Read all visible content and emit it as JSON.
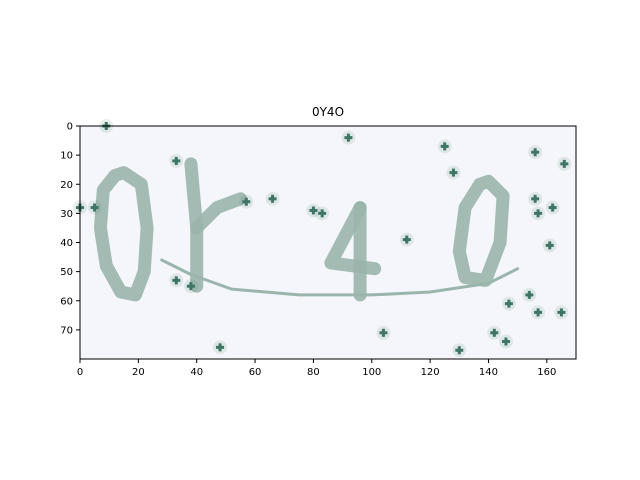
{
  "chart_data": {
    "type": "image",
    "title": "0Y4O",
    "captcha_text": "0Y4O",
    "xlim": [
      0,
      170
    ],
    "ylim": [
      80,
      0
    ],
    "x_ticks": [
      0,
      20,
      40,
      60,
      80,
      100,
      120,
      140,
      160
    ],
    "y_ticks": [
      0,
      10,
      20,
      30,
      40,
      50,
      60,
      70
    ],
    "grid": false,
    "colors": {
      "background": "#f4f6fb",
      "glyph": "#9ab5ab",
      "noise_dot": "#3f7565"
    },
    "glyph_strokes": [
      [
        [
          12,
          17
        ],
        [
          8,
          22
        ],
        [
          7,
          35
        ],
        [
          9,
          48
        ],
        [
          14,
          57
        ],
        [
          19,
          58
        ],
        [
          22,
          50
        ],
        [
          23,
          35
        ],
        [
          21,
          20
        ],
        [
          15,
          16
        ],
        [
          12,
          17
        ]
      ],
      [
        [
          38,
          13
        ],
        [
          40,
          35
        ],
        [
          40,
          55
        ]
      ],
      [
        [
          40,
          35
        ],
        [
          47,
          28
        ],
        [
          55,
          25
        ]
      ],
      [
        [
          96,
          28
        ],
        [
          86,
          47
        ],
        [
          101,
          49
        ]
      ],
      [
        [
          96,
          28
        ],
        [
          96,
          58
        ]
      ],
      [
        [
          137,
          20
        ],
        [
          132,
          28
        ],
        [
          130,
          43
        ],
        [
          132,
          52
        ],
        [
          139,
          53
        ],
        [
          144,
          40
        ],
        [
          145,
          24
        ],
        [
          140,
          19
        ],
        [
          137,
          20
        ]
      ],
      [
        [
          28,
          46
        ],
        [
          38,
          51
        ],
        [
          52,
          56
        ],
        [
          75,
          58
        ],
        [
          100,
          58
        ],
        [
          120,
          57
        ],
        [
          140,
          54
        ],
        [
          150,
          49
        ]
      ]
    ],
    "noise_points": [
      [
        0,
        28
      ],
      [
        5,
        28
      ],
      [
        9,
        0
      ],
      [
        33,
        12
      ],
      [
        33,
        53
      ],
      [
        38,
        55
      ],
      [
        48,
        76
      ],
      [
        57,
        26
      ],
      [
        66,
        25
      ],
      [
        80,
        29
      ],
      [
        83,
        30
      ],
      [
        92,
        4
      ],
      [
        104,
        71
      ],
      [
        112,
        39
      ],
      [
        125,
        7
      ],
      [
        128,
        16
      ],
      [
        130,
        77
      ],
      [
        142,
        71
      ],
      [
        146,
        74
      ],
      [
        147,
        61
      ],
      [
        154,
        58
      ],
      [
        156,
        9
      ],
      [
        156,
        25
      ],
      [
        157,
        30
      ],
      [
        157,
        64
      ],
      [
        161,
        41
      ],
      [
        162,
        28
      ],
      [
        165,
        64
      ],
      [
        166,
        13
      ]
    ]
  }
}
